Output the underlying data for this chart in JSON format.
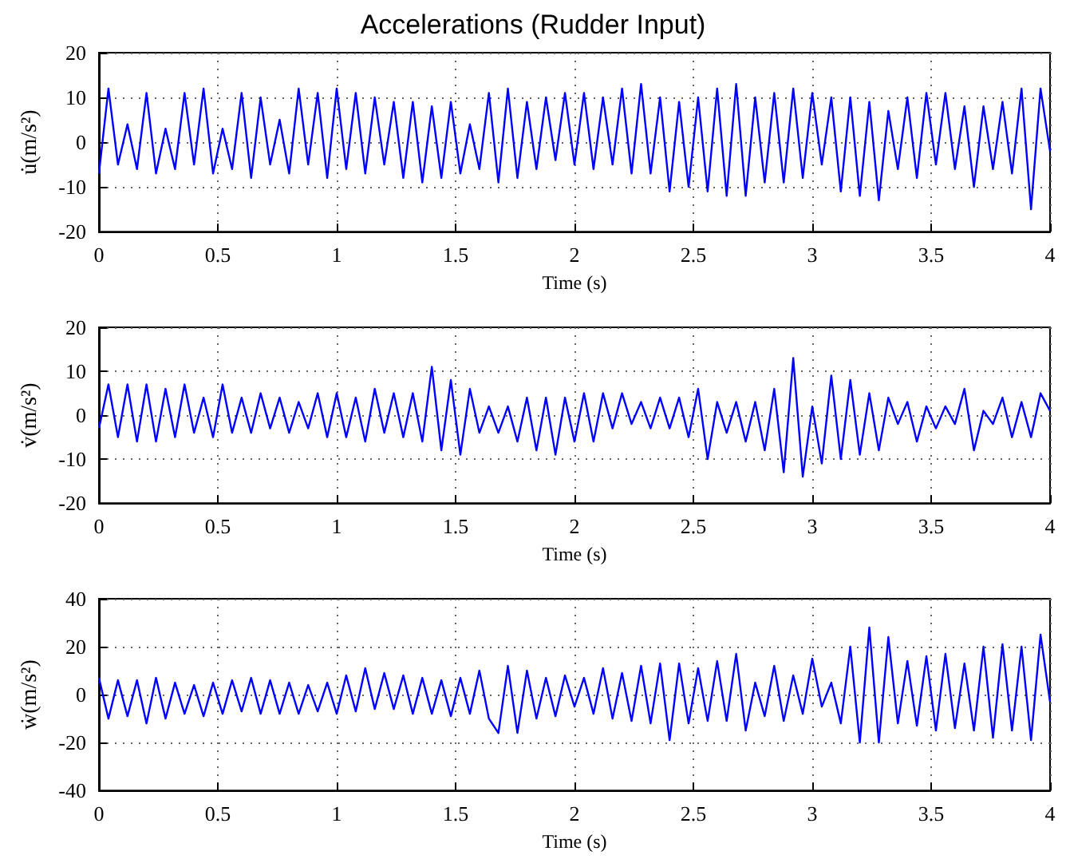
{
  "chart_data": [
    {
      "type": "line",
      "title": "Accelerations (Rudder Input)",
      "xlabel": "Time (s)",
      "ylabel": "u̇(m/s²)",
      "grid": true,
      "marker": "none",
      "xlim": [
        0,
        4
      ],
      "xticks": [
        0,
        0.5,
        1,
        1.5,
        2,
        2.5,
        3,
        3.5,
        4
      ],
      "ylim": [
        -20,
        20
      ],
      "yticks": [
        -20,
        -10,
        0,
        10,
        20
      ],
      "x": [
        0,
        0.04,
        0.08,
        0.12,
        0.16,
        0.2,
        0.24,
        0.28,
        0.32,
        0.36,
        0.4,
        0.44,
        0.48,
        0.52,
        0.56,
        0.6,
        0.64,
        0.68,
        0.72,
        0.76,
        0.8,
        0.84,
        0.88,
        0.92,
        0.96,
        1,
        1.04,
        1.08,
        1.12,
        1.16,
        1.2,
        1.24,
        1.28,
        1.32,
        1.36,
        1.4,
        1.44,
        1.48,
        1.52,
        1.56,
        1.6,
        1.64,
        1.68,
        1.72,
        1.76,
        1.8,
        1.84,
        1.88,
        1.92,
        1.96,
        2,
        2.04,
        2.08,
        2.12,
        2.16,
        2.2,
        2.24,
        2.28,
        2.32,
        2.36,
        2.4,
        2.44,
        2.48,
        2.52,
        2.56,
        2.6,
        2.64,
        2.68,
        2.72,
        2.76,
        2.8,
        2.84,
        2.88,
        2.92,
        2.96,
        3,
        3.04,
        3.08,
        3.12,
        3.16,
        3.2,
        3.24,
        3.28,
        3.32,
        3.36,
        3.4,
        3.44,
        3.48,
        3.52,
        3.56,
        3.6,
        3.64,
        3.68,
        3.72,
        3.76,
        3.8,
        3.84,
        3.88,
        3.92,
        3.96,
        4
      ],
      "series": [
        {
          "color": "#0000ff",
          "values": [
            -7,
            12,
            -5,
            4,
            -6,
            11,
            -7,
            3,
            -6,
            11,
            -5,
            12,
            -7,
            3,
            -6,
            11,
            -8,
            10,
            -5,
            5,
            -7,
            12,
            -5,
            11,
            -8,
            12,
            -6,
            11,
            -7,
            10,
            -5,
            9,
            -8,
            9,
            -9,
            8,
            -8,
            9,
            -7,
            4,
            -6,
            11,
            -9,
            12,
            -8,
            9,
            -6,
            10,
            -4,
            11,
            -5,
            11,
            -6,
            10,
            -5,
            12,
            -7,
            13,
            -7,
            10,
            -11,
            9,
            -10,
            10,
            -11,
            12,
            -12,
            13,
            -12,
            10,
            -9,
            11,
            -9,
            12,
            -8,
            11,
            -5,
            10,
            -11,
            10,
            -12,
            9,
            -13,
            7,
            -6,
            10,
            -8,
            11,
            -5,
            11,
            -6,
            8,
            -10,
            8,
            -6,
            9,
            -7,
            12,
            -15,
            12,
            -2
          ]
        }
      ]
    },
    {
      "type": "line",
      "xlabel": "Time (s)",
      "ylabel": "v̇(m/s²)",
      "grid": true,
      "marker": "none",
      "xlim": [
        0,
        4
      ],
      "xticks": [
        0,
        0.5,
        1,
        1.5,
        2,
        2.5,
        3,
        3.5,
        4
      ],
      "ylim": [
        -20,
        20
      ],
      "yticks": [
        -20,
        -10,
        0,
        10,
        20
      ],
      "x": [
        0,
        0.04,
        0.08,
        0.12,
        0.16,
        0.2,
        0.24,
        0.28,
        0.32,
        0.36,
        0.4,
        0.44,
        0.48,
        0.52,
        0.56,
        0.6,
        0.64,
        0.68,
        0.72,
        0.76,
        0.8,
        0.84,
        0.88,
        0.92,
        0.96,
        1,
        1.04,
        1.08,
        1.12,
        1.16,
        1.2,
        1.24,
        1.28,
        1.32,
        1.36,
        1.4,
        1.44,
        1.48,
        1.52,
        1.56,
        1.6,
        1.64,
        1.68,
        1.72,
        1.76,
        1.8,
        1.84,
        1.88,
        1.92,
        1.96,
        2,
        2.04,
        2.08,
        2.12,
        2.16,
        2.2,
        2.24,
        2.28,
        2.32,
        2.36,
        2.4,
        2.44,
        2.48,
        2.52,
        2.56,
        2.6,
        2.64,
        2.68,
        2.72,
        2.76,
        2.8,
        2.84,
        2.88,
        2.92,
        2.96,
        3,
        3.04,
        3.08,
        3.12,
        3.16,
        3.2,
        3.24,
        3.28,
        3.32,
        3.36,
        3.4,
        3.44,
        3.48,
        3.52,
        3.56,
        3.6,
        3.64,
        3.68,
        3.72,
        3.76,
        3.8,
        3.84,
        3.88,
        3.92,
        3.96,
        4
      ],
      "series": [
        {
          "color": "#0000ff",
          "values": [
            -3,
            7,
            -5,
            7,
            -6,
            7,
            -6,
            6,
            -5,
            7,
            -4,
            4,
            -5,
            7,
            -4,
            4,
            -4,
            5,
            -3,
            4,
            -4,
            3,
            -3,
            5,
            -5,
            5,
            -5,
            4,
            -6,
            6,
            -4,
            5,
            -5,
            5,
            -6,
            11,
            -8,
            8,
            -9,
            6,
            -4,
            2,
            -4,
            2,
            -6,
            4,
            -8,
            4,
            -9,
            4,
            -6,
            5,
            -6,
            5,
            -3,
            5,
            -2,
            3,
            -3,
            4,
            -3,
            4,
            -5,
            6,
            -10,
            3,
            -4,
            3,
            -6,
            3,
            -8,
            6,
            -13,
            13,
            -14,
            2,
            -11,
            9,
            -10,
            8,
            -9,
            5,
            -8,
            4,
            -2,
            3,
            -6,
            2,
            -3,
            2,
            -2,
            6,
            -8,
            1,
            -2,
            4,
            -5,
            3,
            -5,
            5,
            1
          ]
        }
      ]
    },
    {
      "type": "line",
      "xlabel": "Time (s)",
      "ylabel": "ẇ(m/s²)",
      "grid": true,
      "marker": "none",
      "xlim": [
        0,
        4
      ],
      "xticks": [
        0,
        0.5,
        1,
        1.5,
        2,
        2.5,
        3,
        3.5,
        4
      ],
      "ylim": [
        -40,
        40
      ],
      "yticks": [
        -40,
        -20,
        0,
        20,
        40
      ],
      "x": [
        0,
        0.04,
        0.08,
        0.12,
        0.16,
        0.2,
        0.24,
        0.28,
        0.32,
        0.36,
        0.4,
        0.44,
        0.48,
        0.52,
        0.56,
        0.6,
        0.64,
        0.68,
        0.72,
        0.76,
        0.8,
        0.84,
        0.88,
        0.92,
        0.96,
        1,
        1.04,
        1.08,
        1.12,
        1.16,
        1.2,
        1.24,
        1.28,
        1.32,
        1.36,
        1.4,
        1.44,
        1.48,
        1.52,
        1.56,
        1.6,
        1.64,
        1.68,
        1.72,
        1.76,
        1.8,
        1.84,
        1.88,
        1.92,
        1.96,
        2,
        2.04,
        2.08,
        2.12,
        2.16,
        2.2,
        2.24,
        2.28,
        2.32,
        2.36,
        2.4,
        2.44,
        2.48,
        2.52,
        2.56,
        2.6,
        2.64,
        2.68,
        2.72,
        2.76,
        2.8,
        2.84,
        2.88,
        2.92,
        2.96,
        3,
        3.04,
        3.08,
        3.12,
        3.16,
        3.2,
        3.24,
        3.28,
        3.32,
        3.36,
        3.4,
        3.44,
        3.48,
        3.52,
        3.56,
        3.6,
        3.64,
        3.68,
        3.72,
        3.76,
        3.8,
        3.84,
        3.88,
        3.92,
        3.96,
        4
      ],
      "series": [
        {
          "color": "#0000ff",
          "values": [
            7,
            -10,
            6,
            -9,
            6,
            -12,
            7,
            -10,
            5,
            -8,
            4,
            -9,
            5,
            -8,
            6,
            -7,
            7,
            -8,
            6,
            -8,
            5,
            -8,
            4,
            -7,
            5,
            -8,
            8,
            -7,
            11,
            -6,
            9,
            -6,
            8,
            -8,
            7,
            -8,
            6,
            -9,
            7,
            -8,
            10,
            -10,
            -16,
            12,
            -16,
            10,
            -10,
            7,
            -9,
            8,
            -5,
            7,
            -8,
            11,
            -10,
            9,
            -11,
            12,
            -12,
            13,
            -19,
            13,
            -12,
            11,
            -11,
            14,
            -11,
            17,
            -15,
            5,
            -9,
            12,
            -11,
            8,
            -8,
            15,
            -5,
            5,
            -12,
            20,
            -20,
            28,
            -20,
            24,
            -12,
            14,
            -13,
            16,
            -15,
            17,
            -14,
            13,
            -15,
            20,
            -18,
            21,
            -15,
            20,
            -19,
            25,
            -3
          ]
        }
      ]
    }
  ]
}
